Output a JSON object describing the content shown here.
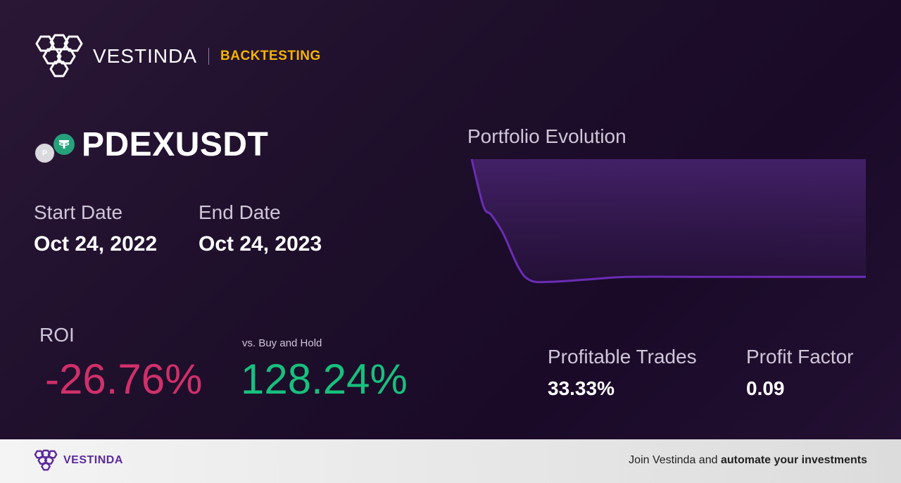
{
  "brand": {
    "name": "VESTINDA",
    "tag": "BACKTESTING"
  },
  "pair": {
    "symbol": "PDEXUSDT",
    "base_icon_letter": "P",
    "base_icon": "pdex-coin-icon",
    "quote_icon": "tether-coin-icon"
  },
  "dates": {
    "start_label": "Start Date",
    "start_value": "Oct 24, 2022",
    "end_label": "End Date",
    "end_value": "Oct 24, 2023"
  },
  "roi": {
    "label": "ROI",
    "value": "-26.76%",
    "vs_label": "vs. Buy and Hold",
    "vs_value": "128.24%"
  },
  "stats": {
    "profitable_trades_label": "Profitable Trades",
    "profitable_trades_value": "33.33%",
    "profit_factor_label": "Profit Factor",
    "profit_factor_value": "0.09"
  },
  "chart_title": "Portfolio Evolution",
  "chart_data": {
    "type": "area",
    "title": "Portfolio Evolution",
    "xlabel": "",
    "ylabel": "",
    "grid": false,
    "legend": "none",
    "x": [
      0,
      0.03,
      0.05,
      0.08,
      0.12,
      0.15,
      0.2,
      0.3,
      0.4,
      0.6,
      0.8,
      1.0
    ],
    "y": [
      100,
      62,
      55,
      40,
      12,
      2,
      1,
      3,
      5,
      5,
      5,
      5
    ],
    "ylim": [
      0,
      100
    ]
  },
  "colors": {
    "negative": "#d0306a",
    "positive": "#17c07d",
    "accent": "#f5b400",
    "line": "#6a2db4"
  },
  "footer": {
    "brand": "VESTINDA",
    "cta_prefix": "Join Vestinda and ",
    "cta_bold": "automate your investments"
  }
}
